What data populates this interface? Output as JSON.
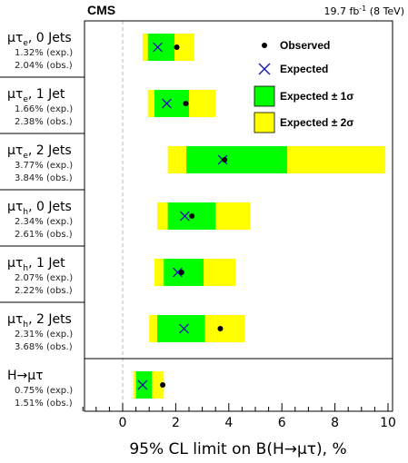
{
  "header": {
    "experiment": "CMS",
    "lumi": "19.7 fb",
    "lumi_exp": "-1",
    "energy": " (8 TeV)"
  },
  "legend": {
    "observed": "Observed",
    "expected": "Expected",
    "band1": "Expected ± 1σ",
    "band2": "Expected ± 2σ"
  },
  "colors": {
    "band1": "#00ff00",
    "band2": "#ffff00",
    "expected_marker": "#1a1aa8",
    "observed_marker": "#000000"
  },
  "chart_data": {
    "type": "scatter",
    "title": "",
    "xlabel": "95% CL limit on B(H→μτ), %",
    "ylabel": "",
    "xlim": [
      -1.6,
      10
    ],
    "xticks": [
      0,
      2,
      4,
      6,
      8,
      10
    ],
    "grid": false,
    "legend_position": "top-right",
    "categories": [
      {
        "name": "μτe, 0 Jets",
        "main": "μτ",
        "sub": "e",
        "suffix": ", 0 Jets",
        "exp_text": "1.32% (exp.)",
        "obs_text": "2.04% (obs.)",
        "expected": 1.32,
        "observed": 2.04,
        "band1": [
          0.95,
          1.95
        ],
        "band2": [
          0.75,
          2.7
        ]
      },
      {
        "name": "μτe, 1 Jet",
        "main": "μτ",
        "sub": "e",
        "suffix": ", 1 Jet",
        "exp_text": "1.66% (exp.)",
        "obs_text": "2.38% (obs.)",
        "expected": 1.66,
        "observed": 2.38,
        "band1": [
          1.2,
          2.5
        ],
        "band2": [
          0.95,
          3.5
        ]
      },
      {
        "name": "μτe, 2 Jets",
        "main": "μτ",
        "sub": "e",
        "suffix": ", 2 Jets",
        "exp_text": "3.77% (exp.)",
        "obs_text": "3.84% (obs.)",
        "expected": 3.77,
        "observed": 3.84,
        "band1": [
          2.4,
          6.2
        ],
        "band2": [
          1.7,
          9.9
        ]
      },
      {
        "name": "μτh, 0 Jets",
        "main": "μτ",
        "sub": "h",
        "suffix": ", 0 Jets",
        "exp_text": "2.34% (exp.)",
        "obs_text": "2.61% (obs.)",
        "expected": 2.34,
        "observed": 2.61,
        "band1": [
          1.7,
          3.5
        ],
        "band2": [
          1.3,
          4.8
        ]
      },
      {
        "name": "μτh, 1 Jet",
        "main": "μτ",
        "sub": "h",
        "suffix": ", 1 Jet",
        "exp_text": "2.07% (exp.)",
        "obs_text": "2.22% (obs.)",
        "expected": 2.07,
        "observed": 2.22,
        "band1": [
          1.55,
          3.05
        ],
        "band2": [
          1.2,
          4.25
        ]
      },
      {
        "name": "μτh, 2 Jets",
        "main": "μτ",
        "sub": "h",
        "suffix": ", 2 Jets",
        "exp_text": "2.31% (exp.)",
        "obs_text": "3.68% (obs.)",
        "expected": 2.31,
        "observed": 3.68,
        "band1": [
          1.3,
          3.1
        ],
        "band2": [
          1.0,
          4.6
        ]
      },
      {
        "name": "H→μτ",
        "main": "H→μτ",
        "sub": "",
        "suffix": "",
        "exp_text": "0.75% (exp.)",
        "obs_text": "1.51% (obs.)",
        "expected": 0.75,
        "observed": 1.51,
        "band1": [
          0.5,
          1.1
        ],
        "band2": [
          0.4,
          1.55
        ]
      }
    ]
  }
}
